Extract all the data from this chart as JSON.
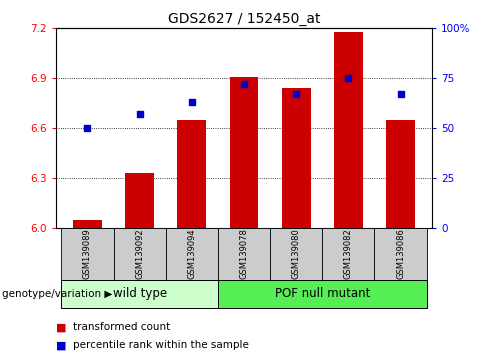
{
  "title": "GDS2627 / 152450_at",
  "samples": [
    "GSM139089",
    "GSM139092",
    "GSM139094",
    "GSM139078",
    "GSM139080",
    "GSM139082",
    "GSM139086"
  ],
  "transformed_count": [
    6.05,
    6.33,
    6.65,
    6.91,
    6.84,
    7.18,
    6.65
  ],
  "percentile_rank": [
    50,
    57,
    63,
    72,
    67,
    75,
    67
  ],
  "ylim_left": [
    6.0,
    7.2
  ],
  "ylim_right": [
    0,
    100
  ],
  "yticks_left": [
    6.0,
    6.3,
    6.6,
    6.9,
    7.2
  ],
  "yticks_right": [
    0,
    25,
    50,
    75,
    100
  ],
  "ytick_right_labels": [
    "0",
    "25",
    "50",
    "75",
    "100%"
  ],
  "bar_color": "#cc0000",
  "dot_color": "#0000cc",
  "bar_width": 0.55,
  "wild_type_label": "wild type",
  "mutant_label": "POF null mutant",
  "genotype_label": "genotype/variation",
  "legend_bar_label": "transformed count",
  "legend_dot_label": "percentile rank within the sample",
  "wild_type_color": "#ccffcc",
  "mutant_color": "#55ee55",
  "label_row_color": "#cccccc",
  "title_fontsize": 10,
  "tick_fontsize": 7.5,
  "sample_fontsize": 6.0,
  "group_fontsize": 8.5,
  "legend_fontsize": 7.5,
  "genotype_fontsize": 7.5,
  "n_wild": 3,
  "n_mutant": 4
}
